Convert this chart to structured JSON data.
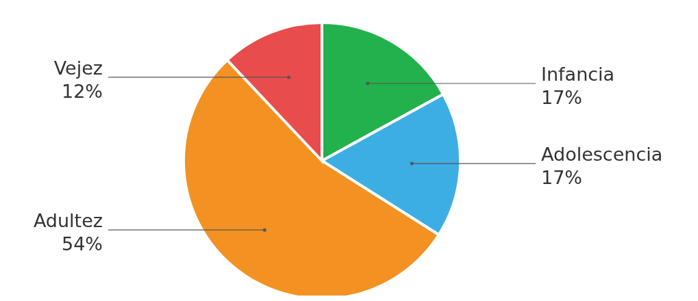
{
  "chart_data": {
    "type": "pie",
    "categories": [
      "Infancia",
      "Adolescencia",
      "Adultez",
      "Vejez"
    ],
    "values": [
      17,
      17,
      54,
      12
    ],
    "value_labels": [
      "17%",
      "17%",
      "54%",
      "12%"
    ],
    "colors": [
      "#22b14c",
      "#3daee3",
      "#f39222",
      "#e84c4c"
    ]
  }
}
